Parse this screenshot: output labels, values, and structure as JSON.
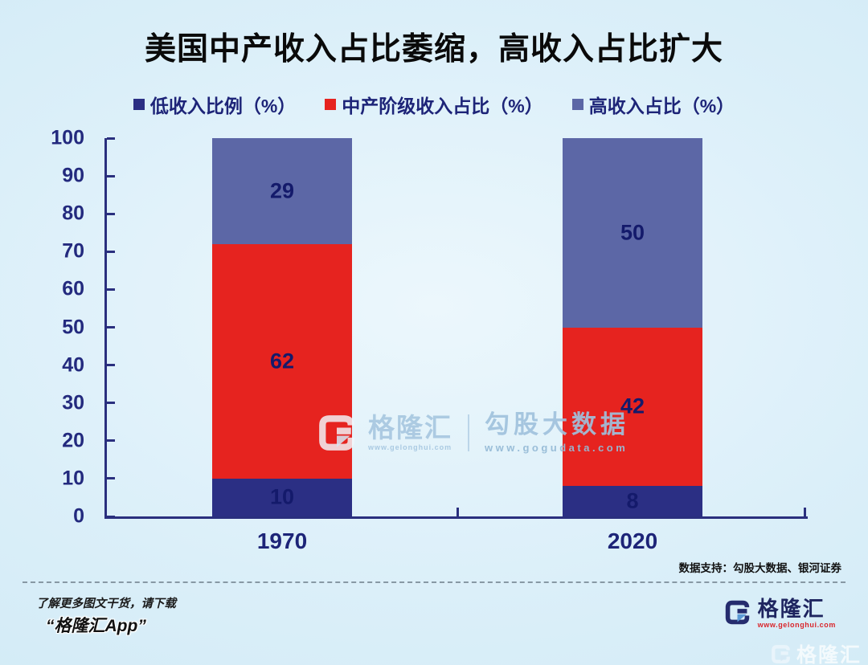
{
  "title": "美国中产收入占比萎缩，高收入占比扩大",
  "chart_data": {
    "type": "bar",
    "stacked": true,
    "title": "美国中产收入占比萎缩，高收入占比扩大",
    "categories": [
      "1970",
      "2020"
    ],
    "series": [
      {
        "name": "低收入比例（%）",
        "color": "#2b2f84",
        "values": [
          10,
          8
        ]
      },
      {
        "name": "中产阶级收入占比（%）",
        "color": "#e6231f",
        "values": [
          62,
          42
        ]
      },
      {
        "name": "高收入占比（%）",
        "color": "#5c67a6",
        "values": [
          29,
          50
        ]
      }
    ],
    "xlabel": "",
    "ylabel": "",
    "ylim": [
      0,
      100
    ],
    "ytick_step": 10,
    "yticks": [
      0,
      10,
      20,
      30,
      40,
      50,
      60,
      70,
      80,
      90,
      100
    ],
    "legend_position": "top",
    "grid": false
  },
  "watermark": {
    "logo": "gelonghui-g-logo",
    "brand": "格隆汇",
    "brand_url": "www.gelonghui.com",
    "partner": "勾股大数据",
    "partner_url": "www.gogudata.com"
  },
  "source_note": "数据支持：勾股大数据、银河证券",
  "footer": {
    "promo_line1": "了解更多图文干货，请下载",
    "promo_line2": "“格隆汇App”",
    "brand": "格隆汇",
    "brand_url": "www.gelonghui.com",
    "corner_brand": "格隆汇"
  },
  "colors": {
    "background": "#d8edf8",
    "axis": "#2a2f7e",
    "text_navy": "#1d2478",
    "bar_label_navy": "#141a6b",
    "low_income": "#2b2f84",
    "middle_class": "#e6231f",
    "high_income": "#5c67a6",
    "brand_navy": "#1e2560",
    "brand_red": "#d9252b"
  }
}
